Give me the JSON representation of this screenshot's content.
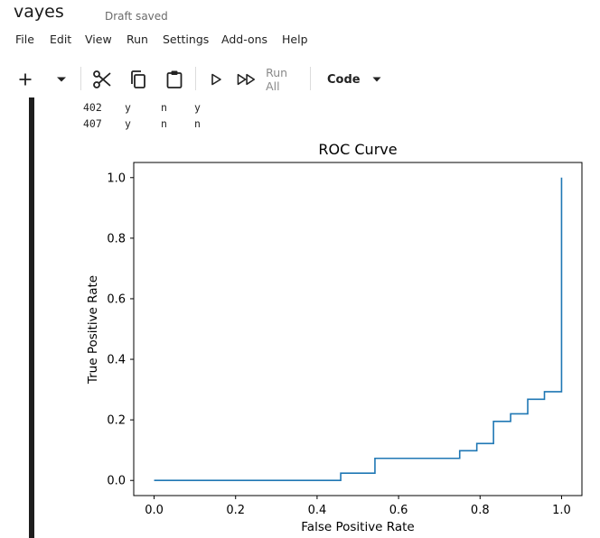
{
  "notebook": {
    "title": "vayes",
    "status": "Draft saved"
  },
  "menu": [
    "File",
    "Edit",
    "View",
    "Run",
    "Settings",
    "Add-ons",
    "Help"
  ],
  "toolbar": {
    "add_icon": "plus-icon",
    "dropdown_icon": "caret-down-icon",
    "cut_icon": "scissors-icon",
    "copy_icon": "copy-icon",
    "paste_icon": "clipboard-icon",
    "run_icon": "play-icon",
    "run_all_icon": "fast-forward-icon",
    "run_all_label": "Run All",
    "cell_type": "Code"
  },
  "output_rows": [
    {
      "index": "402",
      "c1": "y",
      "c2": "n",
      "c3": "y"
    },
    {
      "index": "407",
      "c1": "y",
      "c2": "n",
      "c3": "n"
    }
  ],
  "chart_data": {
    "type": "line",
    "title": "ROC Curve",
    "xlabel": "False Positive Rate",
    "ylabel": "True Positive Rate",
    "xlim": [
      -0.05,
      1.05
    ],
    "ylim": [
      -0.05,
      1.05
    ],
    "xticks": [
      0.0,
      0.2,
      0.4,
      0.6,
      0.8,
      1.0
    ],
    "yticks": [
      0.0,
      0.2,
      0.4,
      0.6,
      0.8,
      1.0
    ],
    "xtick_labels": [
      "0.0",
      "0.2",
      "0.4",
      "0.6",
      "0.8",
      "1.0"
    ],
    "ytick_labels": [
      "0.0",
      "0.2",
      "0.4",
      "0.6",
      "0.8",
      "1.0"
    ],
    "grid": false,
    "color": "#1f77b4",
    "series": [
      {
        "x": [
          0.0,
          0.458,
          0.458,
          0.542,
          0.542,
          0.75,
          0.75,
          0.792,
          0.792,
          0.833,
          0.833,
          0.875,
          0.875,
          0.917,
          0.917,
          0.958,
          0.958,
          1.0,
          1.0
        ],
        "y": [
          0.0,
          0.0,
          0.024,
          0.024,
          0.073,
          0.073,
          0.098,
          0.098,
          0.122,
          0.122,
          0.195,
          0.195,
          0.22,
          0.22,
          0.268,
          0.268,
          0.293,
          0.293,
          1.0
        ]
      }
    ]
  }
}
